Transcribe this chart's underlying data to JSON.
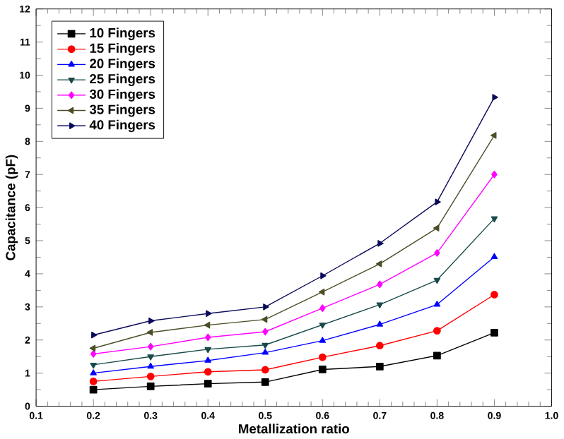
{
  "chart_data": {
    "type": "line",
    "xlabel": "Metallization ratio",
    "ylabel": "Capacitance (pF)",
    "x": [
      0.2,
      0.3,
      0.4,
      0.5,
      0.6,
      0.7,
      0.8,
      0.9
    ],
    "xlim": [
      0.1,
      1.0
    ],
    "ylim": [
      0,
      12
    ],
    "xticks": [
      0.1,
      0.2,
      0.3,
      0.4,
      0.5,
      0.6,
      0.7,
      0.8,
      0.9,
      {
        "value": 1.0,
        "label": "1.0"
      }
    ],
    "yticks": [
      0,
      1,
      2,
      3,
      4,
      5,
      6,
      7,
      8,
      9,
      10,
      11,
      12
    ],
    "grid": false,
    "legend": "top left",
    "line_style": "solid",
    "series": [
      {
        "name": "10 Fingers",
        "color": "#000000",
        "marker": "square",
        "values": [
          0.5,
          0.6,
          0.68,
          0.73,
          1.11,
          1.2,
          1.53,
          2.22
        ]
      },
      {
        "name": "15 Fingers",
        "color": "#ff0000",
        "marker": "circle",
        "values": [
          0.75,
          0.9,
          1.04,
          1.1,
          1.48,
          1.83,
          2.28,
          3.37
        ]
      },
      {
        "name": "20 Fingers",
        "color": "#0000ff",
        "marker": "triangle",
        "values": [
          1.0,
          1.2,
          1.38,
          1.62,
          1.98,
          2.47,
          3.07,
          4.51
        ]
      },
      {
        "name": "25 Fingers",
        "color": "#1a4a4a",
        "marker": "triangle-down",
        "values": [
          1.25,
          1.5,
          1.72,
          1.85,
          2.46,
          3.07,
          3.81,
          5.67
        ]
      },
      {
        "name": "30 Fingers",
        "color": "#ff00ff",
        "marker": "diamond",
        "values": [
          1.58,
          1.8,
          2.08,
          2.25,
          2.96,
          3.68,
          4.63,
          7.0
        ]
      },
      {
        "name": "35 Fingers",
        "color": "#4d4d26",
        "marker": "triangle-left",
        "values": [
          1.75,
          2.23,
          2.45,
          2.62,
          3.45,
          4.3,
          5.38,
          8.18
        ]
      },
      {
        "name": "40 Fingers",
        "color": "#0a0a5a",
        "marker": "triangle-right",
        "values": [
          2.15,
          2.58,
          2.8,
          3.0,
          3.94,
          4.92,
          6.17,
          9.33
        ]
      }
    ]
  }
}
